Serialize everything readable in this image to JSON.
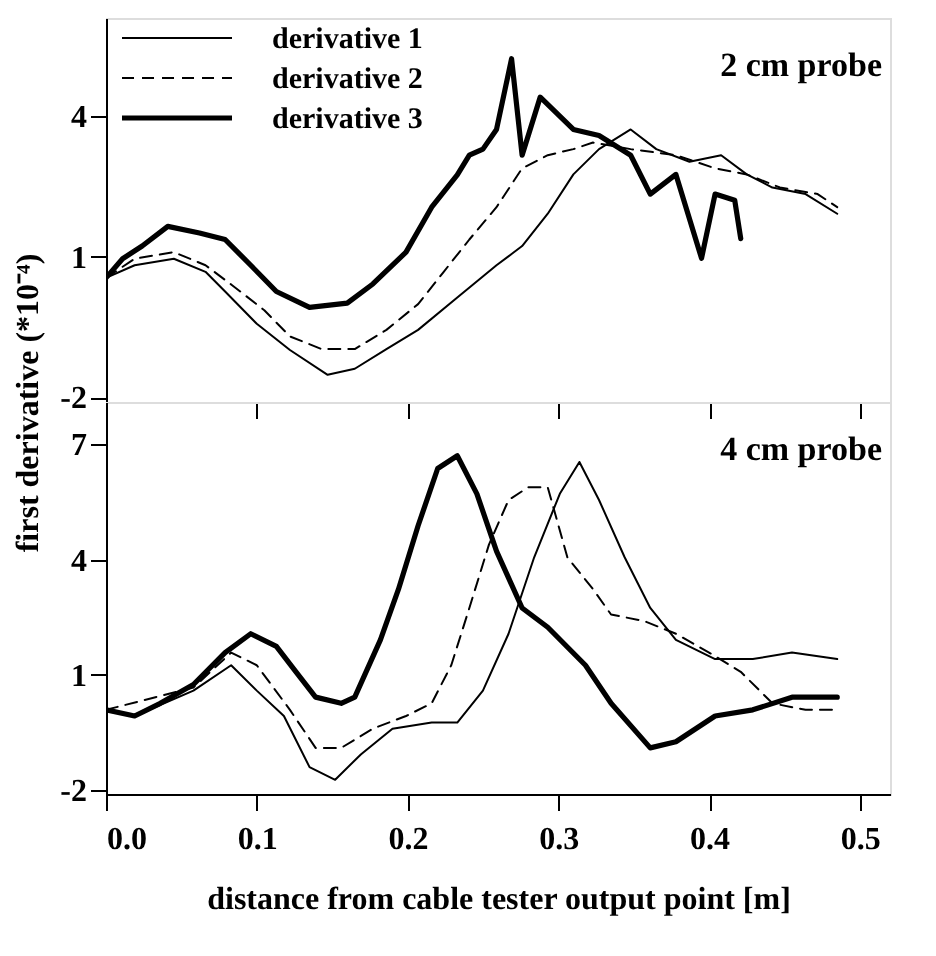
{
  "chart_data": [
    {
      "type": "line",
      "ylabel": "first derivative (*10⁻⁴)",
      "annotations": [
        "2 cm probe"
      ],
      "xlim": [
        0,
        0.52
      ],
      "xticks": [
        0.1,
        0.2,
        0.3,
        0.4,
        0.5
      ],
      "ylim": [
        -2.1,
        6.1
      ],
      "yticks": [
        -2,
        1,
        4
      ],
      "tick_labels": "y",
      "grid": false,
      "legend": "top left",
      "marker": "none",
      "series": [
        {
          "name": "derivative 1",
          "color": "#000000",
          "line_style": "solid",
          "x": [
            0,
            0.019,
            0.045,
            0.066,
            0.079,
            0.1,
            0.122,
            0.147,
            0.165,
            0.186,
            0.207,
            0.233,
            0.259,
            0.276,
            0.293,
            0.31,
            0.327,
            0.348,
            0.365,
            0.387,
            0.408,
            0.425,
            0.442,
            0.464,
            0.485
          ],
          "values": [
            0.55,
            0.82,
            0.96,
            0.68,
            0.26,
            -0.43,
            -0.99,
            -1.52,
            -1.39,
            -0.97,
            -0.56,
            0.13,
            0.82,
            1.23,
            1.92,
            2.76,
            3.3,
            3.72,
            3.3,
            3.03,
            3.17,
            2.76,
            2.48,
            2.34,
            1.92
          ]
        },
        {
          "name": "derivative 2",
          "color": "#000000",
          "line_style": "dashed",
          "x": [
            0,
            0.019,
            0.045,
            0.066,
            0.083,
            0.105,
            0.122,
            0.143,
            0.165,
            0.186,
            0.207,
            0.224,
            0.241,
            0.259,
            0.276,
            0.293,
            0.31,
            0.323,
            0.348,
            0.378,
            0.404,
            0.425,
            0.447,
            0.472,
            0.485
          ],
          "values": [
            0.55,
            0.96,
            1.1,
            0.82,
            0.41,
            -0.14,
            -0.7,
            -0.97,
            -0.97,
            -0.56,
            -0.01,
            0.68,
            1.37,
            2.06,
            2.89,
            3.17,
            3.3,
            3.44,
            3.3,
            3.17,
            2.89,
            2.76,
            2.48,
            2.34,
            2.06
          ]
        },
        {
          "name": "derivative 3",
          "color": "#000000",
          "line_style": "solid",
          "x": [
            0,
            0.011,
            0.024,
            0.041,
            0.062,
            0.079,
            0.096,
            0.113,
            0.135,
            0.16,
            0.177,
            0.199,
            0.216,
            0.233,
            0.241,
            0.25,
            0.259,
            0.269,
            0.276,
            0.288,
            0.31,
            0.327,
            0.348,
            0.361,
            0.378,
            0.395,
            0.404,
            0.417,
            0.421
          ],
          "values": [
            0.55,
            0.96,
            1.23,
            1.65,
            1.51,
            1.37,
            0.82,
            0.26,
            -0.08,
            0.01,
            0.42,
            1.1,
            2.06,
            2.75,
            3.17,
            3.3,
            3.72,
            5.23,
            3.17,
            4.41,
            3.72,
            3.59,
            3.17,
            2.34,
            2.76,
            0.97,
            2.34,
            2.21,
            1.39
          ]
        }
      ]
    },
    {
      "type": "line",
      "xlabel": "distance from cable tester output point [m]",
      "annotations": [
        "4 cm probe"
      ],
      "xlim": [
        0,
        0.52
      ],
      "xticks": [
        {
          "value": 0,
          "label": "0.0"
        },
        0.1,
        0.2,
        0.3,
        0.4,
        0.5
      ],
      "ylim": [
        -2.1,
        8.1
      ],
      "yticks": [
        -2,
        1,
        4,
        7
      ],
      "grid": false,
      "legend": false,
      "marker": "none",
      "series": [
        {
          "color": "#000000",
          "line_style": "solid",
          "x": [
            0,
            0.019,
            0.058,
            0.083,
            0.1,
            0.118,
            0.135,
            0.152,
            0.169,
            0.19,
            0.216,
            0.233,
            0.25,
            0.267,
            0.284,
            0.301,
            0.314,
            0.327,
            0.344,
            0.361,
            0.378,
            0.404,
            0.429,
            0.455,
            0.485
          ],
          "values": [
            0.09,
            -0.07,
            0.59,
            1.25,
            0.59,
            -0.07,
            -1.4,
            -1.73,
            -1.07,
            -0.4,
            -0.24,
            -0.24,
            0.59,
            2.07,
            4.06,
            5.71,
            6.54,
            5.55,
            4.06,
            2.74,
            1.91,
            1.41,
            1.41,
            1.58,
            1.41
          ]
        },
        {
          "color": "#000000",
          "line_style": "dashed",
          "x": [
            0,
            0.058,
            0.083,
            0.1,
            0.122,
            0.139,
            0.156,
            0.177,
            0.199,
            0.216,
            0.229,
            0.241,
            0.254,
            0.267,
            0.28,
            0.293,
            0.306,
            0.323,
            0.335,
            0.357,
            0.378,
            0.4,
            0.421,
            0.442,
            0.464,
            0.485
          ],
          "values": [
            0.09,
            0.67,
            1.58,
            1.25,
            0.09,
            -0.9,
            -0.9,
            -0.4,
            -0.07,
            0.26,
            1.25,
            2.74,
            4.39,
            5.55,
            5.88,
            5.88,
            4.06,
            3.23,
            2.57,
            2.4,
            2.07,
            1.58,
            1.08,
            0.26,
            0.09,
            0.09
          ]
        },
        {
          "color": "#000000",
          "line_style": "solid",
          "x": [
            0,
            0.019,
            0.036,
            0.058,
            0.079,
            0.096,
            0.113,
            0.126,
            0.139,
            0.156,
            0.165,
            0.182,
            0.194,
            0.207,
            0.22,
            0.233,
            0.246,
            0.259,
            0.276,
            0.293,
            0.318,
            0.335,
            0.361,
            0.378,
            0.404,
            0.429,
            0.455,
            0.485
          ],
          "values": [
            0.09,
            -0.07,
            0.26,
            0.75,
            1.58,
            2.07,
            1.74,
            1.08,
            0.42,
            0.26,
            0.42,
            1.91,
            3.23,
            4.88,
            6.37,
            6.7,
            5.71,
            4.22,
            2.74,
            2.24,
            1.25,
            0.26,
            -0.9,
            -0.74,
            -0.07,
            0.09,
            0.42,
            0.42
          ]
        }
      ]
    }
  ]
}
